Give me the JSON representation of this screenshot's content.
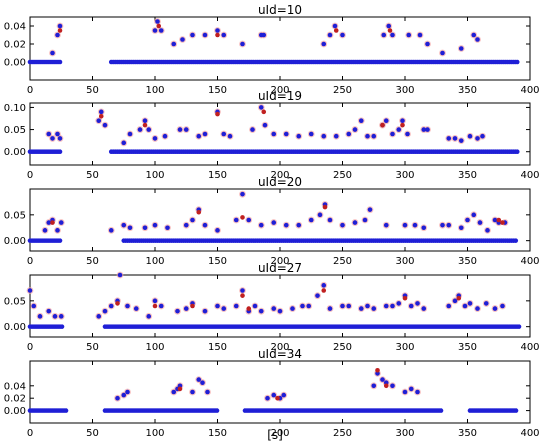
{
  "figure": {
    "xlabel": "[s]"
  },
  "colors": {
    "blue": "#1f1fd6",
    "red": "#c02020",
    "pink": "#f3a6a6",
    "axis": "#000000"
  },
  "chart_data": [
    {
      "type": "scatter",
      "title": "uId=10",
      "xlim": [
        0,
        400
      ],
      "ylim": [
        -0.02,
        0.05
      ],
      "xticks": [
        "0",
        "50",
        "100",
        "150",
        "200",
        "250",
        "300",
        "350",
        "400"
      ],
      "yticks": [
        "0.00",
        "0.02",
        "0.04"
      ],
      "ytick_values": [
        0,
        0.02,
        0.04
      ],
      "baseline_segments": [
        [
          0,
          25
        ],
        [
          65,
          390
        ]
      ],
      "peaks": [
        [
          18,
          0.01
        ],
        [
          22,
          0.03
        ],
        [
          24,
          0.04
        ],
        [
          100,
          0.035
        ],
        [
          102,
          0.045
        ],
        [
          105,
          0.035
        ],
        [
          115,
          0.02
        ],
        [
          122,
          0.025
        ],
        [
          130,
          0.03
        ],
        [
          140,
          0.03
        ],
        [
          150,
          0.035
        ],
        [
          155,
          0.03
        ],
        [
          170,
          0.02
        ],
        [
          185,
          0.03
        ],
        [
          187,
          0.03
        ],
        [
          235,
          0.02
        ],
        [
          240,
          0.03
        ],
        [
          244,
          0.04
        ],
        [
          250,
          0.03
        ],
        [
          283,
          0.03
        ],
        [
          287,
          0.04
        ],
        [
          290,
          0.03
        ],
        [
          303,
          0.03
        ],
        [
          312,
          0.03
        ],
        [
          318,
          0.02
        ],
        [
          330,
          0.01
        ],
        [
          345,
          0.015
        ],
        [
          355,
          0.03
        ],
        [
          358,
          0.025
        ]
      ],
      "red_markers": [
        [
          24,
          0.035
        ],
        [
          103,
          0.04
        ],
        [
          150,
          0.03
        ],
        [
          245,
          0.035
        ],
        [
          288,
          0.035
        ]
      ]
    },
    {
      "type": "scatter",
      "title": "uId=19",
      "xlim": [
        0,
        400
      ],
      "ylim": [
        -0.03,
        0.11
      ],
      "xticks": [
        "0",
        "50",
        "100",
        "150",
        "200",
        "250",
        "300",
        "350",
        "400"
      ],
      "yticks": [
        "0.00",
        "0.05",
        "0.10"
      ],
      "ytick_values": [
        0,
        0.05,
        0.1
      ],
      "baseline_segments": [
        [
          0,
          25
        ],
        [
          65,
          390
        ]
      ],
      "peaks": [
        [
          15,
          0.04
        ],
        [
          18,
          0.03
        ],
        [
          22,
          0.04
        ],
        [
          24,
          0.03
        ],
        [
          55,
          0.07
        ],
        [
          57,
          0.09
        ],
        [
          60,
          0.06
        ],
        [
          75,
          0.02
        ],
        [
          80,
          0.04
        ],
        [
          88,
          0.05
        ],
        [
          92,
          0.07
        ],
        [
          95,
          0.05
        ],
        [
          100,
          0.03
        ],
        [
          108,
          0.035
        ],
        [
          120,
          0.05
        ],
        [
          125,
          0.05
        ],
        [
          135,
          0.035
        ],
        [
          140,
          0.04
        ],
        [
          150,
          0.09
        ],
        [
          155,
          0.04
        ],
        [
          160,
          0.035
        ],
        [
          178,
          0.05
        ],
        [
          185,
          0.1
        ],
        [
          188,
          0.06
        ],
        [
          195,
          0.04
        ],
        [
          205,
          0.04
        ],
        [
          215,
          0.035
        ],
        [
          225,
          0.04
        ],
        [
          235,
          0.035
        ],
        [
          245,
          0.035
        ],
        [
          255,
          0.04
        ],
        [
          260,
          0.05
        ],
        [
          265,
          0.07
        ],
        [
          270,
          0.035
        ],
        [
          275,
          0.035
        ],
        [
          282,
          0.06
        ],
        [
          285,
          0.07
        ],
        [
          290,
          0.04
        ],
        [
          295,
          0.05
        ],
        [
          298,
          0.07
        ],
        [
          302,
          0.04
        ],
        [
          315,
          0.05
        ],
        [
          318,
          0.05
        ],
        [
          335,
          0.03
        ],
        [
          340,
          0.03
        ],
        [
          345,
          0.025
        ],
        [
          352,
          0.035
        ],
        [
          358,
          0.03
        ],
        [
          362,
          0.035
        ]
      ],
      "red_markers": [
        [
          57,
          0.08
        ],
        [
          92,
          0.06
        ],
        [
          150,
          0.085
        ],
        [
          187,
          0.09
        ],
        [
          282,
          0.06
        ],
        [
          298,
          0.06
        ]
      ]
    },
    {
      "type": "scatter",
      "title": "uId=20",
      "xlim": [
        0,
        400
      ],
      "ylim": [
        -0.02,
        0.1
      ],
      "xticks": [
        "0",
        "50",
        "100",
        "150",
        "200",
        "250",
        "300",
        "350",
        "400"
      ],
      "yticks": [
        "0.00",
        "0.05"
      ],
      "ytick_values": [
        0,
        0.05
      ],
      "baseline_segments": [
        [
          0,
          25
        ],
        [
          75,
          390
        ]
      ],
      "peaks": [
        [
          12,
          0.02
        ],
        [
          15,
          0.035
        ],
        [
          18,
          0.04
        ],
        [
          22,
          0.02
        ],
        [
          25,
          0.035
        ],
        [
          65,
          0.02
        ],
        [
          75,
          0.03
        ],
        [
          80,
          0.025
        ],
        [
          92,
          0.025
        ],
        [
          100,
          0.03
        ],
        [
          110,
          0.025
        ],
        [
          125,
          0.03
        ],
        [
          130,
          0.04
        ],
        [
          135,
          0.06
        ],
        [
          140,
          0.03
        ],
        [
          150,
          0.02
        ],
        [
          165,
          0.04
        ],
        [
          170,
          0.09
        ],
        [
          175,
          0.04
        ],
        [
          185,
          0.03
        ],
        [
          195,
          0.035
        ],
        [
          205,
          0.03
        ],
        [
          215,
          0.03
        ],
        [
          225,
          0.04
        ],
        [
          232,
          0.05
        ],
        [
          236,
          0.07
        ],
        [
          240,
          0.04
        ],
        [
          250,
          0.03
        ],
        [
          260,
          0.035
        ],
        [
          268,
          0.04
        ],
        [
          272,
          0.06
        ],
        [
          285,
          0.03
        ],
        [
          300,
          0.03
        ],
        [
          308,
          0.03
        ],
        [
          315,
          0.025
        ],
        [
          330,
          0.03
        ],
        [
          335,
          0.03
        ],
        [
          345,
          0.025
        ],
        [
          350,
          0.04
        ],
        [
          355,
          0.05
        ],
        [
          360,
          0.035
        ],
        [
          366,
          0.02
        ],
        [
          372,
          0.04
        ],
        [
          375,
          0.035
        ],
        [
          380,
          0.035
        ]
      ],
      "red_markers": [
        [
          18,
          0.035
        ],
        [
          135,
          0.055
        ],
        [
          170,
          0.045
        ],
        [
          236,
          0.065
        ],
        [
          375,
          0.04
        ],
        [
          378,
          0.035
        ]
      ]
    },
    {
      "type": "scatter",
      "title": "uId=27",
      "xlim": [
        0,
        400
      ],
      "ylim": [
        -0.02,
        0.1
      ],
      "xticks": [
        "0",
        "50",
        "100",
        "150",
        "200",
        "250",
        "300",
        "350",
        "400"
      ],
      "yticks": [
        "0.00",
        "0.05"
      ],
      "ytick_values": [
        0,
        0.05
      ],
      "baseline_segments": [
        [
          0,
          27
        ],
        [
          60,
          392
        ]
      ],
      "peaks": [
        [
          0,
          0.07
        ],
        [
          3,
          0.04
        ],
        [
          8,
          0.02
        ],
        [
          15,
          0.03
        ],
        [
          20,
          0.02
        ],
        [
          25,
          0.02
        ],
        [
          55,
          0.02
        ],
        [
          60,
          0.03
        ],
        [
          65,
          0.04
        ],
        [
          70,
          0.05
        ],
        [
          72,
          0.1
        ],
        [
          78,
          0.04
        ],
        [
          85,
          0.035
        ],
        [
          95,
          0.02
        ],
        [
          100,
          0.05
        ],
        [
          105,
          0.04
        ],
        [
          118,
          0.03
        ],
        [
          125,
          0.035
        ],
        [
          130,
          0.045
        ],
        [
          140,
          0.03
        ],
        [
          150,
          0.04
        ],
        [
          155,
          0.035
        ],
        [
          165,
          0.04
        ],
        [
          170,
          0.07
        ],
        [
          175,
          0.03
        ],
        [
          180,
          0.04
        ],
        [
          185,
          0.03
        ],
        [
          195,
          0.035
        ],
        [
          200,
          0.03
        ],
        [
          210,
          0.035
        ],
        [
          218,
          0.04
        ],
        [
          223,
          0.04
        ],
        [
          230,
          0.06
        ],
        [
          235,
          0.08
        ],
        [
          240,
          0.035
        ],
        [
          250,
          0.04
        ],
        [
          255,
          0.04
        ],
        [
          265,
          0.035
        ],
        [
          270,
          0.04
        ],
        [
          275,
          0.035
        ],
        [
          285,
          0.04
        ],
        [
          290,
          0.04
        ],
        [
          295,
          0.045
        ],
        [
          300,
          0.06
        ],
        [
          305,
          0.04
        ],
        [
          310,
          0.045
        ],
        [
          315,
          0.035
        ],
        [
          335,
          0.04
        ],
        [
          340,
          0.05
        ],
        [
          343,
          0.06
        ],
        [
          348,
          0.04
        ],
        [
          352,
          0.045
        ],
        [
          358,
          0.035
        ],
        [
          365,
          0.045
        ],
        [
          372,
          0.035
        ],
        [
          378,
          0.04
        ]
      ],
      "red_markers": [
        [
          70,
          0.045
        ],
        [
          100,
          0.04
        ],
        [
          130,
          0.04
        ],
        [
          170,
          0.06
        ],
        [
          175,
          0.035
        ],
        [
          235,
          0.07
        ],
        [
          300,
          0.055
        ],
        [
          343,
          0.055
        ]
      ]
    },
    {
      "type": "scatter",
      "title": "uId=34",
      "xlim": [
        0,
        400
      ],
      "ylim": [
        -0.02,
        0.08
      ],
      "xticks": [
        "0",
        "50",
        "100",
        "150",
        "200",
        "250",
        "300",
        "350",
        "400"
      ],
      "yticks": [
        "0.00",
        "0.02",
        "0.04"
      ],
      "ytick_values": [
        0,
        0.02,
        0.04
      ],
      "baseline_segments": [
        [
          0,
          30
        ],
        [
          60,
          150
        ],
        [
          172,
          330
        ],
        [
          352,
          390
        ]
      ],
      "peaks": [
        [
          70,
          0.02
        ],
        [
          75,
          0.025
        ],
        [
          78,
          0.03
        ],
        [
          115,
          0.03
        ],
        [
          118,
          0.035
        ],
        [
          120,
          0.04
        ],
        [
          130,
          0.03
        ],
        [
          135,
          0.05
        ],
        [
          138,
          0.045
        ],
        [
          142,
          0.03
        ],
        [
          190,
          0.02
        ],
        [
          195,
          0.025
        ],
        [
          200,
          0.02
        ],
        [
          203,
          0.025
        ],
        [
          275,
          0.04
        ],
        [
          278,
          0.06
        ],
        [
          282,
          0.05
        ],
        [
          285,
          0.045
        ],
        [
          290,
          0.04
        ],
        [
          300,
          0.03
        ],
        [
          305,
          0.035
        ],
        [
          310,
          0.03
        ]
      ],
      "red_markers": [
        [
          120,
          0.035
        ],
        [
          198,
          0.02
        ],
        [
          278,
          0.065
        ],
        [
          285,
          0.04
        ]
      ]
    }
  ]
}
